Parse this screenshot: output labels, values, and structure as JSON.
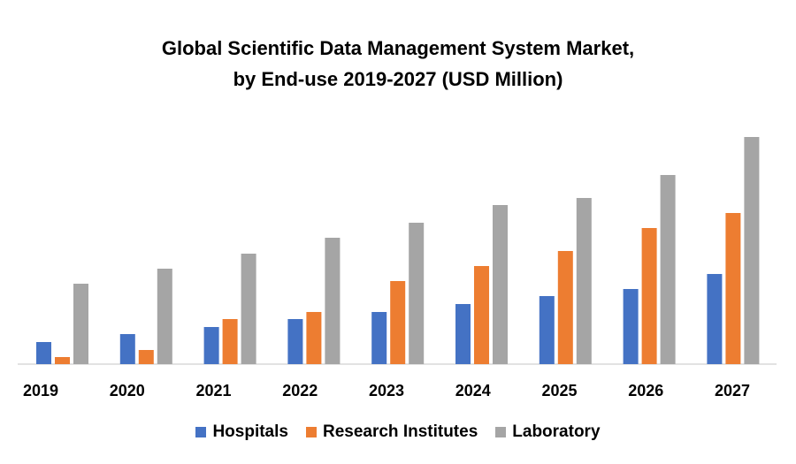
{
  "chart_data": {
    "type": "bar",
    "title": [
      "Global Scientific Data Management System Market,",
      "by End-use 2019-2027 (USD Million)"
    ],
    "xlabel": "",
    "ylabel": "",
    "categories": [
      "2019",
      "2020",
      "2021",
      "2022",
      "2023",
      "2024",
      "2025",
      "2026",
      "2027"
    ],
    "series": [
      {
        "name": "Hospitals",
        "color": "#4472C4",
        "values": [
          25,
          34,
          42,
          51,
          59,
          68,
          77,
          85,
          102
        ]
      },
      {
        "name": "Research Institutes",
        "color": "#ED7D31",
        "values": [
          8,
          16,
          51,
          59,
          94,
          111,
          128,
          154,
          171
        ]
      },
      {
        "name": "Laboratory",
        "color": "#A5A5A5",
        "values": [
          91,
          108,
          125,
          143,
          160,
          180,
          188,
          214,
          257
        ]
      }
    ],
    "ylim": [
      0,
      260
    ],
    "y_axis_visible": false,
    "grid": false,
    "legend_position": "bottom"
  }
}
